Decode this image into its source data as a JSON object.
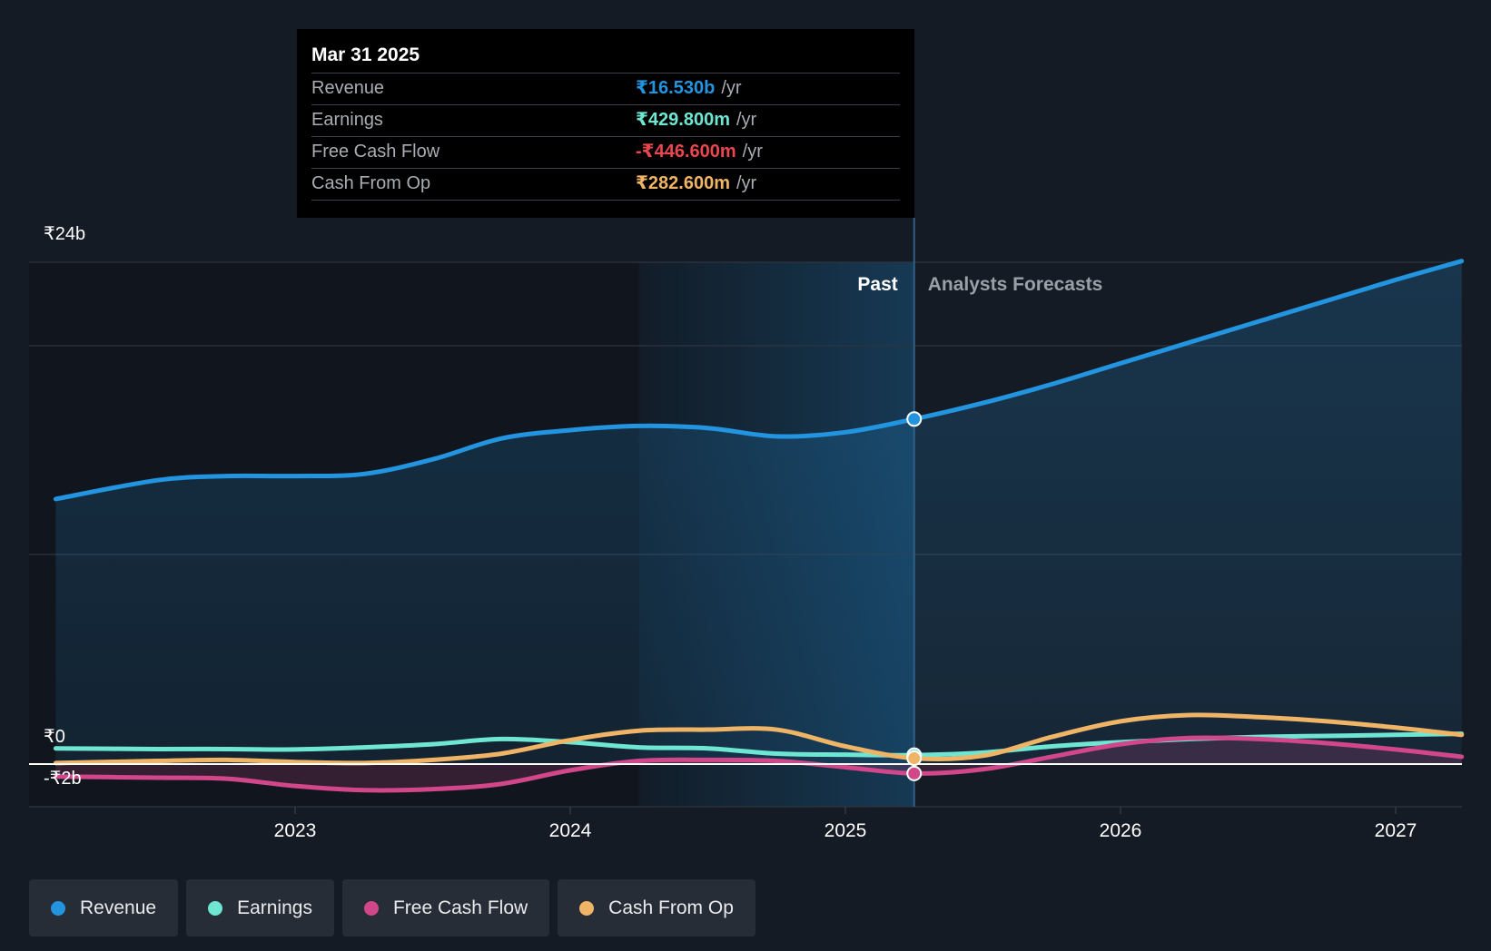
{
  "tooltip": {
    "date": "Mar 31 2025",
    "rows": [
      {
        "label": "Revenue",
        "value": "₹16.530b",
        "unit": "/yr",
        "color": "#2394df"
      },
      {
        "label": "Earnings",
        "value": "₹429.800m",
        "unit": "/yr",
        "color": "#6ee6d2"
      },
      {
        "label": "Free Cash Flow",
        "value": "-₹446.600m",
        "unit": "/yr",
        "color": "#e8474f"
      },
      {
        "label": "Cash From Op",
        "value": "₹282.600m",
        "unit": "/yr",
        "color": "#f0b466"
      }
    ]
  },
  "legend": [
    {
      "label": "Revenue",
      "color": "#2394df"
    },
    {
      "label": "Earnings",
      "color": "#6ee6d2"
    },
    {
      "label": "Free Cash Flow",
      "color": "#d2468a"
    },
    {
      "label": "Cash From Op",
      "color": "#f0b466"
    }
  ],
  "chart_data": {
    "type": "line",
    "y_tick_labels": [
      "₹24b",
      "₹0",
      "-₹2b"
    ],
    "ylim": [
      -2,
      24
    ],
    "xlim": [
      2022.13,
      2027.24
    ],
    "x_ticks": [
      2023,
      2024,
      2025,
      2026,
      2027
    ],
    "x_tick_labels": [
      "2023",
      "2024",
      "2025",
      "2026",
      "2027"
    ],
    "past_label": "Past",
    "forecast_label": "Analysts Forecasts",
    "divider_x": 2025.25,
    "highlight_start_x": 2024.25,
    "series": [
      {
        "name": "Revenue",
        "color": "#2394df",
        "area": true,
        "points": [
          [
            2022.13,
            12.7
          ],
          [
            2022.5,
            13.6
          ],
          [
            2022.75,
            13.8
          ],
          [
            2023,
            13.8
          ],
          [
            2023.25,
            13.9
          ],
          [
            2023.5,
            14.6
          ],
          [
            2023.75,
            15.6
          ],
          [
            2024,
            16.0
          ],
          [
            2024.25,
            16.2
          ],
          [
            2024.5,
            16.1
          ],
          [
            2024.75,
            15.7
          ],
          [
            2025,
            15.9
          ],
          [
            2025.25,
            16.53
          ],
          [
            2025.5,
            17.3
          ],
          [
            2025.75,
            18.2
          ],
          [
            2026,
            19.2
          ],
          [
            2026.25,
            20.2
          ],
          [
            2026.5,
            21.2
          ],
          [
            2026.75,
            22.2
          ],
          [
            2027,
            23.2
          ],
          [
            2027.24,
            24.1
          ]
        ]
      },
      {
        "name": "Earnings",
        "color": "#6ee6d2",
        "area": false,
        "points": [
          [
            2022.13,
            0.75
          ],
          [
            2022.5,
            0.72
          ],
          [
            2022.75,
            0.72
          ],
          [
            2023,
            0.7
          ],
          [
            2023.25,
            0.8
          ],
          [
            2023.5,
            0.95
          ],
          [
            2023.75,
            1.2
          ],
          [
            2024,
            1.05
          ],
          [
            2024.25,
            0.8
          ],
          [
            2024.5,
            0.75
          ],
          [
            2024.75,
            0.5
          ],
          [
            2025,
            0.45
          ],
          [
            2025.25,
            0.43
          ],
          [
            2025.5,
            0.55
          ],
          [
            2025.75,
            0.85
          ],
          [
            2026,
            1.05
          ],
          [
            2026.25,
            1.2
          ],
          [
            2026.5,
            1.3
          ],
          [
            2026.75,
            1.35
          ],
          [
            2027,
            1.4
          ],
          [
            2027.24,
            1.45
          ]
        ]
      },
      {
        "name": "Free Cash Flow",
        "color": "#d2468a",
        "area": true,
        "points": [
          [
            2022.13,
            -0.6
          ],
          [
            2022.5,
            -0.65
          ],
          [
            2022.75,
            -0.7
          ],
          [
            2023,
            -1.05
          ],
          [
            2023.25,
            -1.25
          ],
          [
            2023.5,
            -1.2
          ],
          [
            2023.75,
            -0.95
          ],
          [
            2024,
            -0.3
          ],
          [
            2024.25,
            0.15
          ],
          [
            2024.5,
            0.2
          ],
          [
            2024.75,
            0.15
          ],
          [
            2025,
            -0.15
          ],
          [
            2025.25,
            -0.45
          ],
          [
            2025.5,
            -0.25
          ],
          [
            2025.75,
            0.35
          ],
          [
            2026,
            0.95
          ],
          [
            2026.25,
            1.25
          ],
          [
            2026.5,
            1.2
          ],
          [
            2026.75,
            1.0
          ],
          [
            2027,
            0.7
          ],
          [
            2027.24,
            0.35
          ]
        ]
      },
      {
        "name": "Cash From Op",
        "color": "#f0b466",
        "area": false,
        "points": [
          [
            2022.13,
            0.05
          ],
          [
            2022.5,
            0.15
          ],
          [
            2022.75,
            0.2
          ],
          [
            2023,
            0.1
          ],
          [
            2023.25,
            0.05
          ],
          [
            2023.5,
            0.2
          ],
          [
            2023.75,
            0.5
          ],
          [
            2024,
            1.15
          ],
          [
            2024.25,
            1.6
          ],
          [
            2024.5,
            1.65
          ],
          [
            2024.75,
            1.65
          ],
          [
            2025,
            0.85
          ],
          [
            2025.25,
            0.28
          ],
          [
            2025.5,
            0.4
          ],
          [
            2025.75,
            1.3
          ],
          [
            2026,
            2.05
          ],
          [
            2026.25,
            2.35
          ],
          [
            2026.5,
            2.25
          ],
          [
            2026.75,
            2.05
          ],
          [
            2027,
            1.75
          ],
          [
            2027.24,
            1.4
          ]
        ]
      }
    ]
  }
}
